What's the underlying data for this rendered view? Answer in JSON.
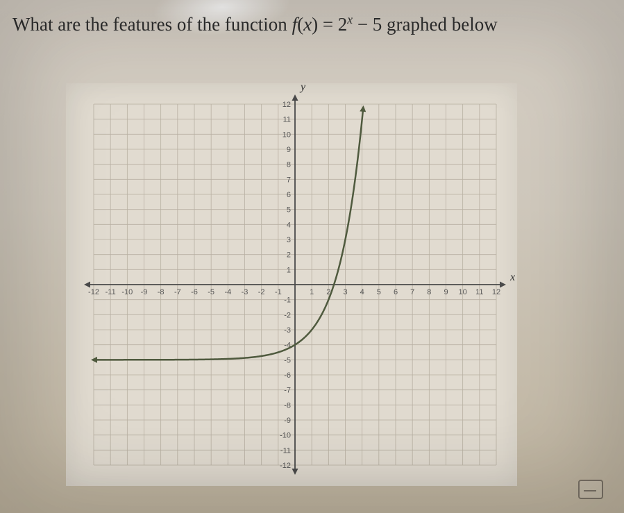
{
  "question": {
    "prefix": "What are the features of the function ",
    "fn_name": "f",
    "fn_arg": "x",
    "eq": " = 2",
    "exp": "x",
    "suffix": " − 5 graphed below"
  },
  "chart": {
    "type": "line",
    "background_color": "#e1dbd0",
    "grid_color": "#b8b0a2",
    "axis_color": "#4a4a4a",
    "curve_color": "#4f5a3e",
    "curve_width": 2.5,
    "xlim": [
      -12,
      12
    ],
    "ylim": [
      -12,
      12
    ],
    "xtick_step": 1,
    "ytick_step": 1,
    "x_axis_label": "x",
    "y_axis_label": "y",
    "x_tick_labels": [
      "-12",
      "-11",
      "-10",
      "-9",
      "-8",
      "-7",
      "-6",
      "-5",
      "-4",
      "-3",
      "-2",
      "-1",
      "",
      "1",
      "2",
      "3",
      "4",
      "5",
      "6",
      "7",
      "8",
      "9",
      "10",
      "11",
      "12"
    ],
    "y_tick_labels_pos": [
      "1",
      "2",
      "3",
      "4",
      "5",
      "6",
      "7",
      "8",
      "9",
      "10",
      "11",
      "12"
    ],
    "y_tick_labels_neg": [
      "-1",
      "-2",
      "-3",
      "-4",
      "-5",
      "-6",
      "-7",
      "-8",
      "-9",
      "-10",
      "-11",
      "-12"
    ],
    "asymptote_y": -5,
    "function": "2^x - 5",
    "curve_points_x": [
      -12,
      -10,
      -8,
      -6,
      -4,
      -2,
      -1,
      0,
      0.5,
      1,
      1.5,
      2,
      2.3,
      2.6,
      3,
      3.3,
      3.6,
      3.9,
      4.08
    ],
    "curve_points_y": [
      -4.9998,
      -4.999,
      -4.996,
      -4.984,
      -4.9375,
      -4.75,
      -4.5,
      -4,
      -3.586,
      -3,
      -2.172,
      -1,
      -0.076,
      1.063,
      3,
      4.849,
      7.126,
      9.928,
      11.91
    ],
    "arrow_size": 9,
    "tick_font_size": 11,
    "tick_font_color": "#555555"
  }
}
